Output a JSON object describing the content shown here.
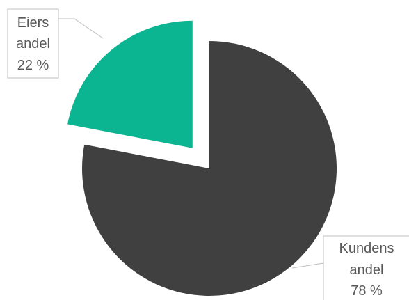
{
  "chart_data": {
    "type": "pie",
    "slices": [
      {
        "label_lines": [
          "Kundens",
          "andel",
          "78 %"
        ],
        "value": 78,
        "color": "#404040",
        "exploded": false
      },
      {
        "label_lines": [
          "Eiers",
          "andel",
          "22 %"
        ],
        "value": 22,
        "color": "#0bb592",
        "exploded": true
      }
    ],
    "start_angle_deg": 0,
    "direction": "clockwise",
    "label_border_color": "#bfbfbf",
    "label_text_color": "#595959"
  }
}
